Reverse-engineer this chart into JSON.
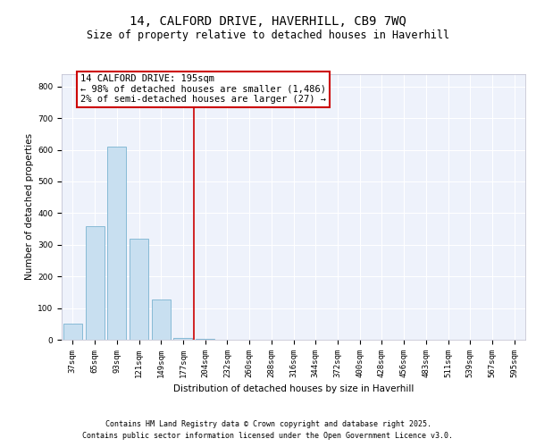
{
  "title1": "14, CALFORD DRIVE, HAVERHILL, CB9 7WQ",
  "title2": "Size of property relative to detached houses in Haverhill",
  "xlabel": "Distribution of detached houses by size in Haverhill",
  "ylabel": "Number of detached properties",
  "categories": [
    "37sqm",
    "65sqm",
    "93sqm",
    "121sqm",
    "149sqm",
    "177sqm",
    "204sqm",
    "232sqm",
    "260sqm",
    "288sqm",
    "316sqm",
    "344sqm",
    "372sqm",
    "400sqm",
    "428sqm",
    "456sqm",
    "483sqm",
    "511sqm",
    "539sqm",
    "567sqm",
    "595sqm"
  ],
  "values": [
    50,
    360,
    610,
    320,
    128,
    5,
    2,
    1,
    0,
    0,
    0,
    0,
    0,
    0,
    0,
    0,
    0,
    0,
    0,
    0,
    0
  ],
  "bar_color": "#c8dff0",
  "bar_edgecolor": "#7ab3d0",
  "property_line_color": "#cc0000",
  "annotation_text": "14 CALFORD DRIVE: 195sqm\n← 98% of detached houses are smaller (1,486)\n2% of semi-detached houses are larger (27) →",
  "annotation_box_color": "#cc0000",
  "ylim": [
    0,
    840
  ],
  "yticks": [
    0,
    100,
    200,
    300,
    400,
    500,
    600,
    700,
    800
  ],
  "background_color": "#eef2fb",
  "footer1": "Contains HM Land Registry data © Crown copyright and database right 2025.",
  "footer2": "Contains public sector information licensed under the Open Government Licence v3.0.",
  "title_fontsize": 10,
  "subtitle_fontsize": 8.5,
  "axis_fontsize": 7.5,
  "tick_fontsize": 6.5,
  "annot_fontsize": 7.5
}
